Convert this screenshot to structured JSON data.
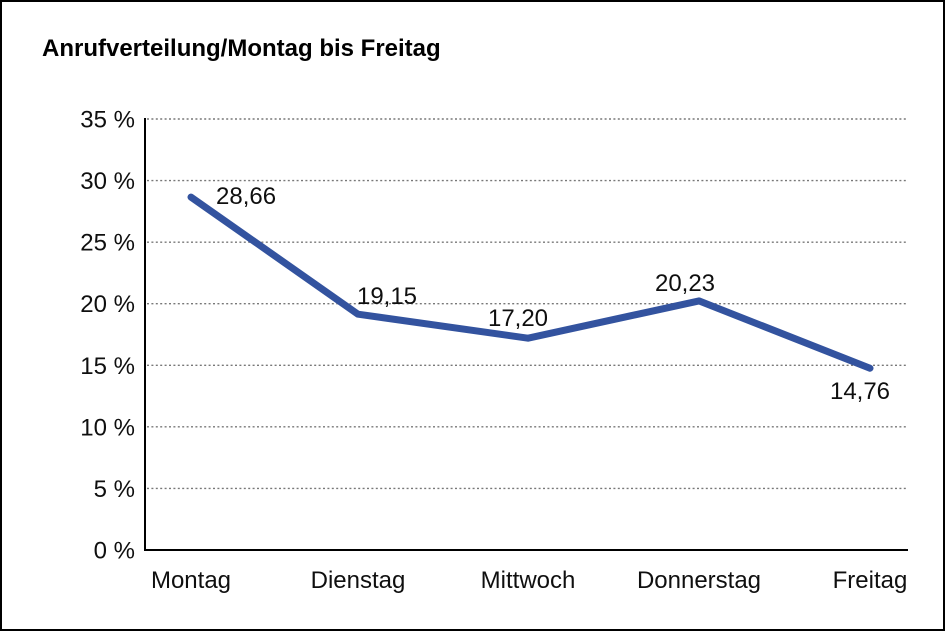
{
  "title": "Anrufverteilung/Montag bis Freitag",
  "chart_data": {
    "type": "line",
    "title": "Anrufverteilung/Montag bis Freitag",
    "categories": [
      "Montag",
      "Dienstag",
      "Mittwoch",
      "Donnerstag",
      "Freitag"
    ],
    "values": [
      28.66,
      19.15,
      17.2,
      20.23,
      14.76
    ],
    "point_labels": [
      "28,66",
      "19,15",
      "17,20",
      "20,23",
      "14,76"
    ],
    "xlabel": "",
    "ylabel": "",
    "ylim": [
      0,
      35
    ],
    "y_tick_step": 5,
    "y_tick_values": [
      0,
      5,
      10,
      15,
      20,
      25,
      30,
      35
    ],
    "y_tick_labels": [
      "0 %",
      "5 %",
      "10 %",
      "15 %",
      "20 %",
      "25 %",
      "30 %",
      "35 %"
    ],
    "grid": "horizontal-dotted",
    "legend": "none",
    "series_name": "Anrufverteilung",
    "line_color": "#33539F",
    "axis_color": "#000000",
    "gridline_color": "#787878",
    "text_color": "#0f0f0f"
  }
}
